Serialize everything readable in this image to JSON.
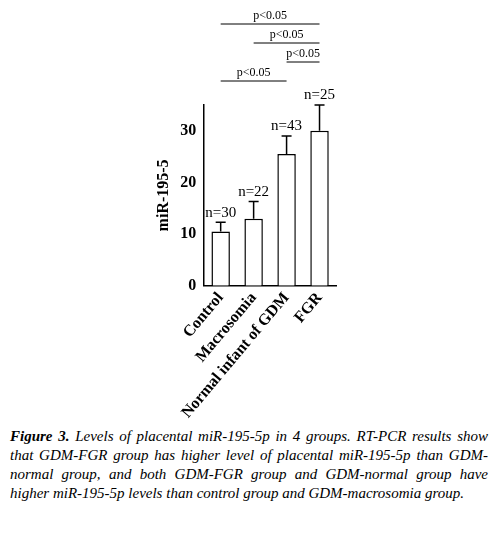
{
  "chart_data": {
    "type": "bar",
    "y_label": "miR-195-5",
    "categories": [
      "Control",
      "Macrosomia",
      "Normal infant of GDM",
      "FGR"
    ],
    "values": [
      10.5,
      13,
      25.5,
      30
    ],
    "errors": [
      1.8,
      3.3,
      3.5,
      5
    ],
    "annotations": [
      "n=30",
      "n=22",
      "n=43",
      "n=25"
    ],
    "brackets": [
      {
        "from": "Control",
        "to": "FGR",
        "label": "p<0.05"
      },
      {
        "from": "Macrosomia",
        "to": "FGR",
        "label": "p<0.05"
      },
      {
        "from": "Normal infant of GDM",
        "to": "FGR",
        "label": "p<0.05"
      },
      {
        "from": "Control",
        "to": "Normal infant of GDM",
        "label": "p<0.05"
      }
    ],
    "color": "#ffffff",
    "ylim": [
      0,
      35
    ],
    "yticks": [
      0,
      10,
      20,
      30
    ],
    "grid": false,
    "caption": {
      "label": "Figure 3.",
      "text": "Levels of placental miR-195-5p in 4 groups. RT-PCR results show that GDM-FGR group has higher level of placental miR-195-5p than GDM-normal group, and both GDM-FGR group and GDM-normal group have higher miR-195-5p levels than control group and GDM-macrosomia group."
    }
  }
}
